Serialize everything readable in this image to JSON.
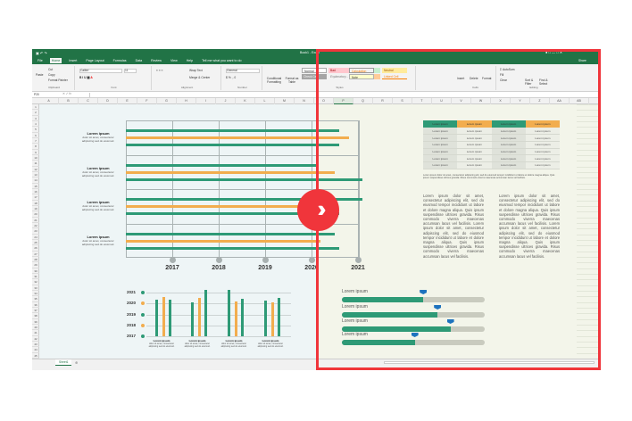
{
  "window": {
    "title": "Book1 - Excel",
    "share": "Share",
    "name_box": "P20"
  },
  "tabs": [
    "File",
    "Home",
    "Insert",
    "Page Layout",
    "Formulas",
    "Data",
    "Review",
    "View",
    "Help",
    "Tell me what you want to do"
  ],
  "ribbon": {
    "clipboard": {
      "paste": "Paste",
      "cut": "Cut",
      "copy": "Copy",
      "format_painter": "Format Painter",
      "label": "Clipboard"
    },
    "font": {
      "name": "Calibri",
      "size": "11",
      "label": "Font"
    },
    "alignment": {
      "wrap": "Wrap Text",
      "merge": "Merge & Center",
      "label": "Alignment"
    },
    "number": {
      "format": "General",
      "label": "Number"
    },
    "styles": {
      "conditional": "Conditional Formatting",
      "format_table": "Format as Table",
      "normal": "Normal",
      "check_cell": "Check Cell",
      "bad": "Bad",
      "good": "Good",
      "neutral": "Neutral",
      "calculation": "Calculation",
      "explanatory": "Explanatory...",
      "input": "Input",
      "linked_cell": "Linked Cell",
      "note": "Note",
      "label": "Styles"
    },
    "cells": {
      "insert": "Insert",
      "delete": "Delete",
      "format": "Format",
      "label": "Cells"
    },
    "editing": {
      "autosum": "AutoSum",
      "fill": "Fill",
      "clear": "Clear",
      "sort": "Sort & Filter",
      "find": "Find & Select",
      "label": "Editing"
    }
  },
  "columns": [
    "A",
    "B",
    "C",
    "D",
    "E",
    "F",
    "G",
    "H",
    "I",
    "J",
    "K",
    "L",
    "M",
    "N",
    "O",
    "P",
    "Q",
    "R",
    "S",
    "T",
    "U",
    "V",
    "W",
    "X",
    "Y",
    "Z",
    "AA",
    "AB"
  ],
  "row_count": 45,
  "sheet_tab": "Sheet1",
  "colors": {
    "green": "#2e9a76",
    "orange": "#f2ad4e",
    "accent": "#217346",
    "frame": "#f0353b",
    "marker": "#1e73be"
  },
  "hbar_chart": {
    "type": "bar",
    "categories": [
      "2017",
      "2018",
      "2019",
      "2020",
      "2021"
    ],
    "groups": [
      {
        "title": "Lorem ipsum",
        "text": "dolor sit amet, consectetur adipiscing sed do eiusmod.",
        "values": [
          2020.6,
          2020.8,
          2020.6
        ]
      },
      {
        "title": "Lorem ipsum",
        "text": "dolor sit amet, consectetur adipiscing sed do eiusmod.",
        "values": [
          2020.1,
          2020.5,
          2021.1
        ]
      },
      {
        "title": "Lorem ipsum",
        "text": "dolor sit amet, consectetur adipiscing sed do eiusmod.",
        "values": [
          2021.1,
          2020.3,
          2020.6
        ]
      },
      {
        "title": "Lorem ipsum",
        "text": "dolor sit amet, consectetur adipiscing sed do eiusmod.",
        "values": [
          2020.5,
          2020.2,
          2020.6
        ]
      }
    ]
  },
  "column_chart": {
    "type": "bar",
    "y_labels": [
      "2021",
      "2020",
      "2019",
      "2018",
      "2017"
    ],
    "groups": [
      {
        "title": "Lorem ipsum",
        "text": "dolor sit amet, consectetur adipiscing sed do eiusmod.",
        "values": [
          0.84,
          0.9,
          0.84
        ]
      },
      {
        "title": "Lorem ipsum",
        "text": "dolor sit amet, consectetur adipiscing sed do eiusmod.",
        "values": [
          0.78,
          0.88,
          1.06
        ]
      },
      {
        "title": "Lorem ipsum",
        "text": "dolor sit amet, consectetur adipiscing sed do eiusmod.",
        "values": [
          1.06,
          0.8,
          0.86
        ]
      },
      {
        "title": "Lorem ipsum",
        "text": "dolor sit amet, consectetur adipiscing sed do eiusmod.",
        "values": [
          0.82,
          0.78,
          0.88
        ]
      }
    ]
  },
  "table": {
    "header": [
      "Lorem ipsum",
      "Lorem ipsum",
      "Lorem ipsum",
      "Lorem ipsum"
    ],
    "rows": [
      [
        "Lorem ipsum",
        "Lorem ipsum",
        "Lorem ipsum",
        "Lorem ipsum"
      ],
      [
        "Lorem ipsum",
        "Lorem ipsum",
        "Lorem ipsum",
        "Lorem ipsum"
      ],
      [
        "Lorem ipsum",
        "Lorem ipsum",
        "Lorem ipsum",
        "Lorem ipsum"
      ],
      [
        "Lorem ipsum",
        "Lorem ipsum",
        "Lorem ipsum",
        "Lorem ipsum"
      ],
      [
        "Lorem ipsum",
        "Lorem ipsum",
        "Lorem ipsum",
        "Lorem ipsum"
      ],
      [
        "Lorem ipsum",
        "Lorem ipsum",
        "Lorem ipsum",
        "Lorem ipsum"
      ]
    ],
    "caption": "Lorem ipsum dolor sit amet, consectetur adipiscing elit, sed do eiusmod tempor incididunt ut labore et dolore magna aliqua. Quis ipsum suspendisse ultrices gravida. Risus commodo viverra maecenas accumsan lacus vel facilisis."
  },
  "paragraphs": [
    "Lorem ipsum dolor sit amet, consectetur adipiscing elit, sed do eiusmod tempor incididunt ut labore et dolore magna aliqua. Quis ipsum suspendisse ultrices gravida. Risus commodo viverra maecenas accumsan lacus vel facilisis. Lorem ipsum dolor sit amet, consectetur adipiscing elit, sed do eiusmod tempor incididunt ut labore et dolore magna aliqua. Quis ipsum suspendisse ultrices gravida. Risus commodo viverra maecenas accumsan lacus vel facilisis.",
    "Lorem ipsum dolor sit amet, consectetur adipiscing elit, sed do eiusmod tempor incididunt ut labore et dolore magna aliqua. Quis ipsum suspendisse ultrices gravida. Risus commodo viverra maecenas accumsan lacus vel facilisis. Lorem ipsum dolor sit amet, consectetur adipiscing elit, sed do eiusmod tempor incididunt ut labore et dolore magna aliqua. Quis ipsum suspendisse ultrices gravida. Risus commodo viverra maecenas accumsan lacus vel facilisis."
  ],
  "progress": [
    {
      "label": "Lorem ipsum",
      "value": 0.57
    },
    {
      "label": "Lorem ipsum",
      "value": 0.67
    },
    {
      "label": "Lorem ipsum",
      "value": 0.76
    },
    {
      "label": "Lorem ipsum",
      "value": 0.51
    }
  ],
  "compare_button_icon": "double-chevron-right-icon"
}
